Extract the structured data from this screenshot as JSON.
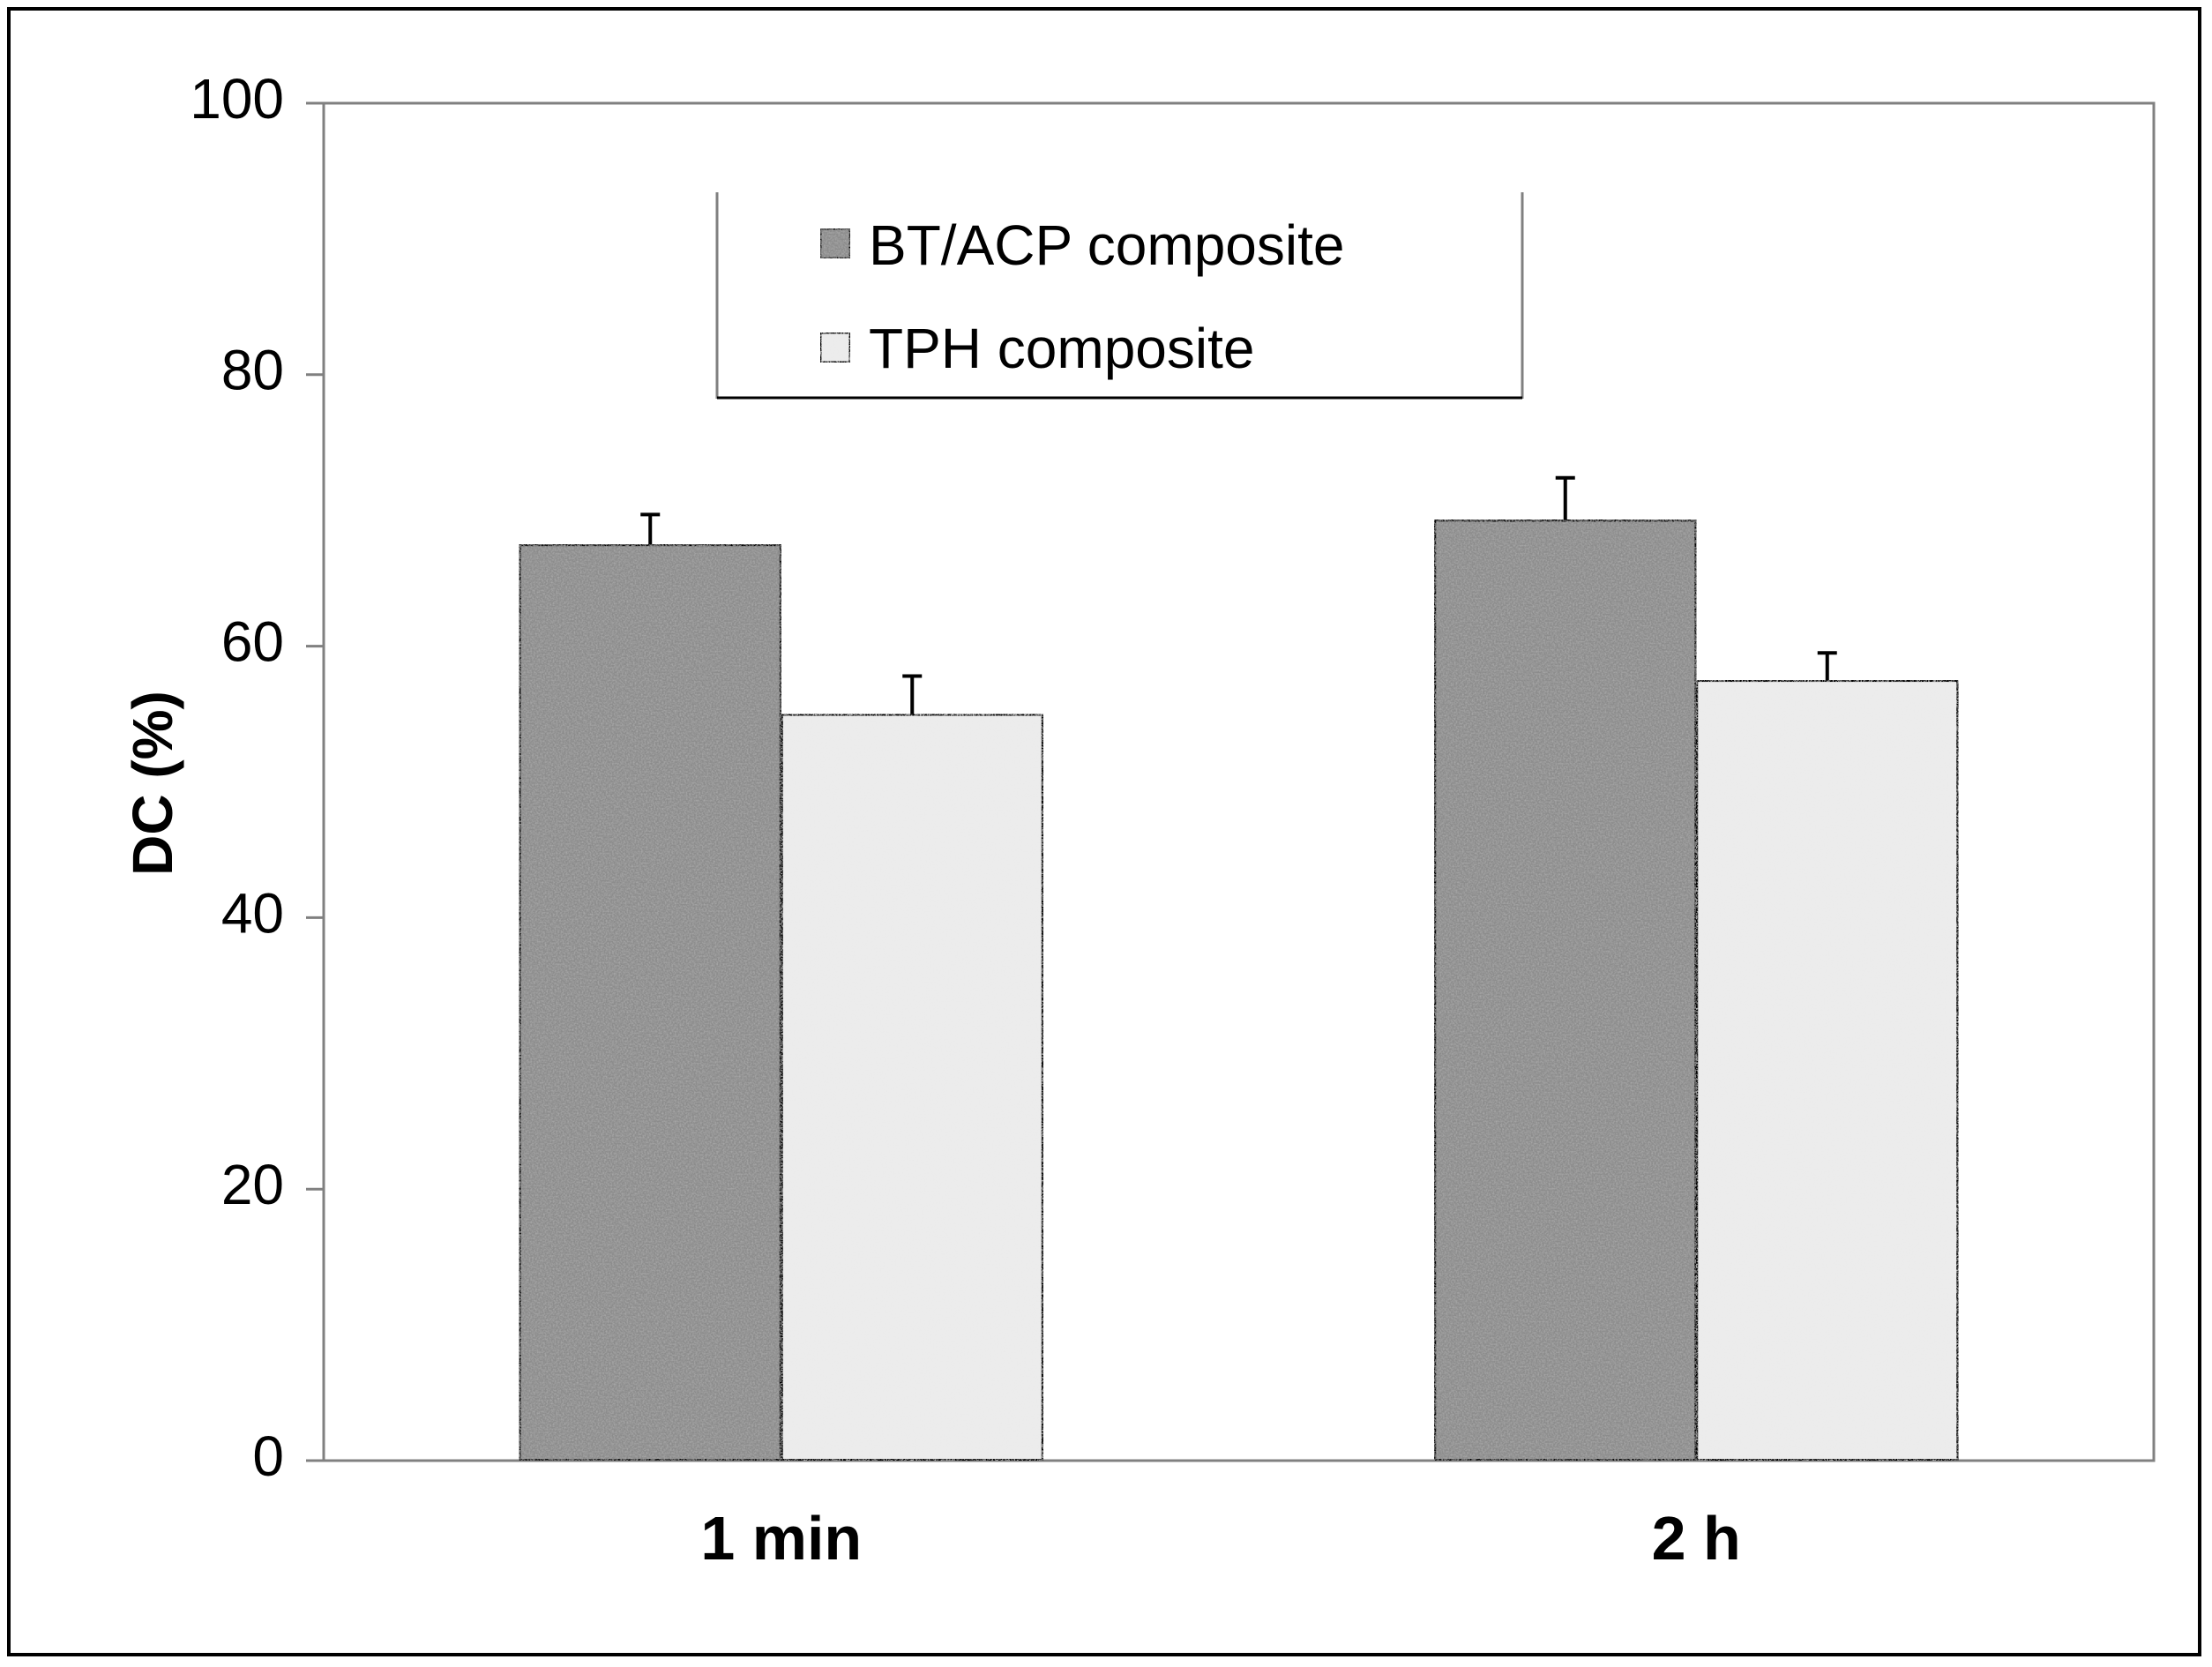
{
  "chart_data": {
    "type": "bar",
    "title": "",
    "xlabel": "",
    "ylabel": "DC (%)",
    "ylim": [
      0,
      100
    ],
    "yticks": [
      "0",
      "20",
      "40",
      "60",
      "80",
      "100"
    ],
    "categories": [
      "1 min",
      "2 h"
    ],
    "grid": false,
    "legend_position": "top-center",
    "series": [
      {
        "name": "BT/ACP composite",
        "values": [
          67.5,
          69.3
        ],
        "errors": [
          2.2,
          3.1
        ],
        "color": "#8c8c8c"
      },
      {
        "name": "TPH composite",
        "values": [
          55.0,
          57.5
        ],
        "errors": [
          2.8,
          2.0
        ],
        "color": "#ececec"
      }
    ]
  }
}
